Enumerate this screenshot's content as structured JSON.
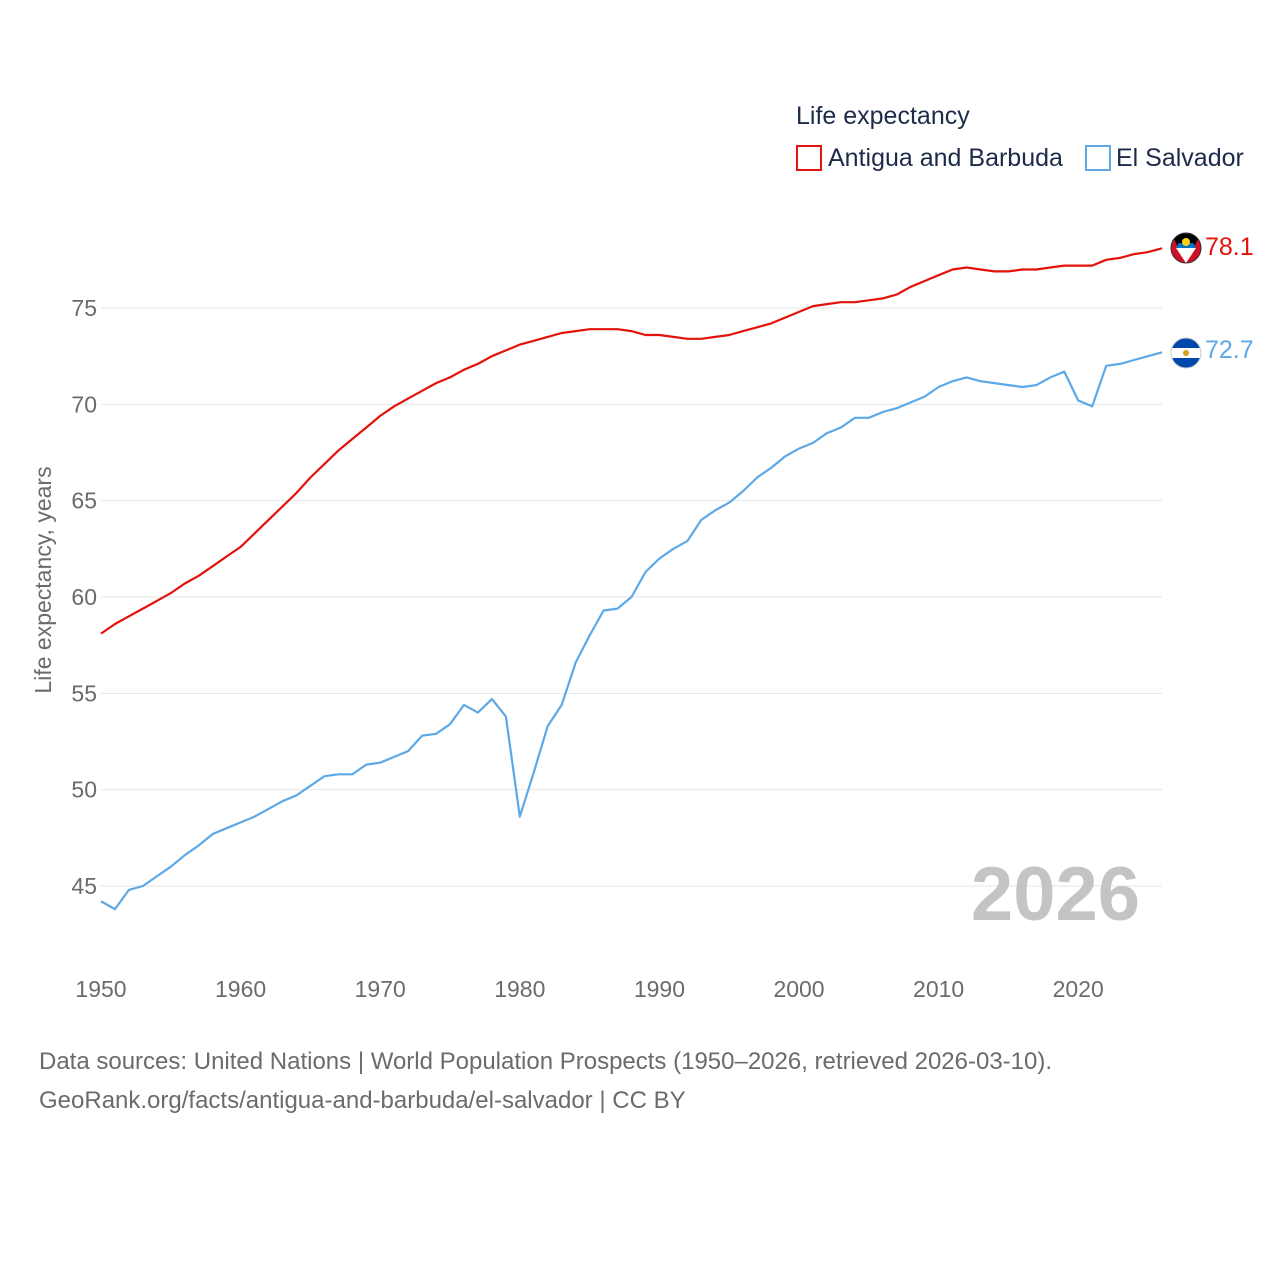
{
  "chart_data": {
    "type": "line",
    "legend_title": "Life expectancy",
    "ylabel": "Life expectancy, years",
    "xlabel": "",
    "ylim": [
      42.5,
      80
    ],
    "xlim": [
      1950,
      2026
    ],
    "y_ticks": [
      45,
      50,
      55,
      60,
      65,
      70,
      75
    ],
    "x_ticks": [
      1950,
      1960,
      1970,
      1980,
      1990,
      2000,
      2010,
      2020
    ],
    "current_year": "2026",
    "series": [
      {
        "name": "Antigua and Barbuda",
        "color": "#e3120b",
        "end_label": "78.1",
        "flag": "antigua-and-barbuda-flag",
        "x": [
          1950,
          1951,
          1952,
          1953,
          1954,
          1955,
          1956,
          1957,
          1958,
          1959,
          1960,
          1961,
          1962,
          1963,
          1964,
          1965,
          1966,
          1967,
          1968,
          1969,
          1970,
          1971,
          1972,
          1973,
          1974,
          1975,
          1976,
          1977,
          1978,
          1979,
          1980,
          1981,
          1982,
          1983,
          1984,
          1985,
          1986,
          1987,
          1988,
          1989,
          1990,
          1991,
          1992,
          1993,
          1994,
          1995,
          1996,
          1997,
          1998,
          1999,
          2000,
          2001,
          2002,
          2003,
          2004,
          2005,
          2006,
          2007,
          2008,
          2009,
          2010,
          2011,
          2012,
          2013,
          2014,
          2015,
          2016,
          2017,
          2018,
          2019,
          2020,
          2021,
          2022,
          2023,
          2024,
          2025,
          2026
        ],
        "values": [
          58.1,
          58.6,
          59.0,
          59.4,
          59.8,
          60.2,
          60.7,
          61.1,
          61.6,
          62.1,
          62.6,
          63.3,
          64.0,
          64.7,
          65.4,
          66.2,
          66.9,
          67.6,
          68.2,
          68.8,
          69.4,
          69.9,
          70.3,
          70.7,
          71.1,
          71.4,
          71.8,
          72.1,
          72.5,
          72.8,
          73.1,
          73.3,
          73.5,
          73.7,
          73.8,
          73.9,
          73.9,
          73.9,
          73.8,
          73.6,
          73.6,
          73.5,
          73.4,
          73.4,
          73.5,
          73.6,
          73.8,
          74.0,
          74.2,
          74.5,
          74.8,
          75.1,
          75.2,
          75.3,
          75.3,
          75.4,
          75.5,
          75.7,
          76.1,
          76.4,
          76.7,
          77.0,
          77.1,
          77.0,
          76.9,
          76.9,
          77.0,
          77.0,
          77.1,
          77.2,
          77.2,
          77.2,
          77.5,
          77.6,
          77.8,
          77.9,
          78.1
        ]
      },
      {
        "name": "El Salvador",
        "color": "#5da8e6",
        "end_label": "72.7",
        "flag": "el-salvador-flag",
        "x": [
          1950,
          1951,
          1952,
          1953,
          1954,
          1955,
          1956,
          1957,
          1958,
          1959,
          1960,
          1961,
          1962,
          1963,
          1964,
          1965,
          1966,
          1967,
          1968,
          1969,
          1970,
          1971,
          1972,
          1973,
          1974,
          1975,
          1976,
          1977,
          1978,
          1979,
          1980,
          1981,
          1982,
          1983,
          1984,
          1985,
          1986,
          1987,
          1988,
          1989,
          1990,
          1991,
          1992,
          1993,
          1994,
          1995,
          1996,
          1997,
          1998,
          1999,
          2000,
          2001,
          2002,
          2003,
          2004,
          2005,
          2006,
          2007,
          2008,
          2009,
          2010,
          2011,
          2012,
          2013,
          2014,
          2015,
          2016,
          2017,
          2018,
          2019,
          2020,
          2021,
          2022,
          2023,
          2024,
          2025,
          2026
        ],
        "values": [
          44.2,
          43.8,
          44.8,
          45.0,
          45.5,
          46.0,
          46.6,
          47.1,
          47.7,
          48.0,
          48.3,
          48.6,
          49.0,
          49.4,
          49.7,
          50.2,
          50.7,
          50.8,
          50.8,
          51.3,
          51.4,
          51.7,
          52.0,
          52.8,
          52.9,
          53.4,
          54.4,
          54.0,
          54.7,
          53.8,
          48.6,
          50.9,
          53.3,
          54.4,
          56.6,
          58.0,
          59.3,
          59.4,
          60.0,
          61.3,
          62.0,
          62.5,
          62.9,
          64.0,
          64.5,
          64.9,
          65.5,
          66.2,
          66.7,
          67.3,
          67.7,
          68.0,
          68.5,
          68.8,
          69.3,
          69.3,
          69.6,
          69.8,
          70.1,
          70.4,
          70.9,
          71.2,
          71.4,
          71.2,
          71.1,
          71.0,
          70.9,
          71.0,
          71.4,
          71.7,
          70.2,
          69.9,
          72.0,
          72.1,
          72.3,
          72.5,
          72.7
        ]
      }
    ]
  },
  "footer": {
    "line1": "Data sources: United Nations | World Population Prospects (1950–2026, retrieved 2026-03-10).",
    "line2": "GeoRank.org/facts/antigua-and-barbuda/el-salvador | CC BY"
  }
}
